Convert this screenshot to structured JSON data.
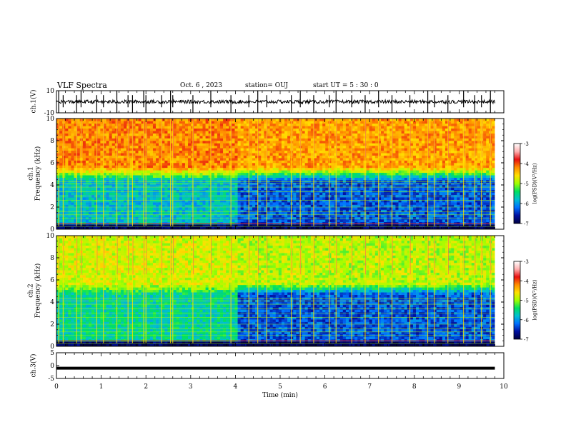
{
  "header": {
    "title": "VLF Spectra",
    "date": "Oct. 6 , 2023",
    "station": "station= OUJ",
    "start": "start UT = 5 : 30 : 0"
  },
  "colorbar": {
    "label": "log(PSD)(V²/Hz)",
    "ticks": [
      "-3",
      "-4",
      "-5",
      "-6",
      "-7"
    ],
    "stops": [
      "#ffffff",
      "#ffb0b0",
      "#e81010",
      "#ff8c00",
      "#ffe000",
      "#a0ff00",
      "#00e060",
      "#00c0d0",
      "#0070ff",
      "#0010a0",
      "#000040"
    ]
  },
  "panels": {
    "ch1_waveform": {
      "label": "ch.1(V)",
      "yticks": [
        "10",
        "-10"
      ]
    },
    "ch1_spec": {
      "label": "ch.1",
      "ylabel": "Frequency (kHz)",
      "yticks": [
        "10",
        "8",
        "6",
        "4",
        "2",
        "0"
      ]
    },
    "ch2_spec": {
      "label": "ch.2",
      "ylabel": "Frequency (kHz)",
      "yticks": [
        "10",
        "8",
        "6",
        "4",
        "2",
        "0"
      ]
    },
    "ch3_waveform": {
      "label": "ch.3(V)",
      "yticks": [
        "5",
        "0",
        "-5"
      ]
    }
  },
  "xaxis": {
    "label": "Time (min)",
    "ticks": [
      "0",
      "1",
      "2",
      "3",
      "4",
      "5",
      "6",
      "7",
      "8",
      "9",
      "10"
    ]
  },
  "chart_data": {
    "type": "heatmap",
    "title": "VLF Spectra",
    "xlabel": "Time (min)",
    "ylabel": "Frequency (kHz)",
    "xlim": [
      0,
      10
    ],
    "ylim": [
      0,
      10
    ],
    "clim": [
      -7,
      -3
    ],
    "colorbar_label": "log(PSD)(V²/Hz)",
    "ch1_waveform_ylim": [
      -10,
      10
    ],
    "ch3_waveform_ylim": [
      -5,
      5
    ],
    "ch3_level": -1,
    "data_end_min": 9.8,
    "segment_change_min": 4.0,
    "spectrogram_levels": {
      "ch1": {
        "band_low_kHz": [
          0,
          4.3
        ],
        "band_high_kHz": [
          5.5,
          10
        ],
        "before_4min": {
          "low": -5.8,
          "high": -4.2
        },
        "after_4min": {
          "low": -6.3,
          "high": -4.3
        }
      },
      "ch2": {
        "band_low_kHz": [
          0,
          4.6
        ],
        "band_high_kHz": [
          5.5,
          10
        ],
        "before_4min": {
          "low": -5.6,
          "high": -4.8
        },
        "after_4min": {
          "low": -6.3,
          "high": -4.9
        }
      }
    },
    "sferic_times_min": [
      0.05,
      0.15,
      0.45,
      0.55,
      0.9,
      1.05,
      1.35,
      1.6,
      1.7,
      1.95,
      2.0,
      2.35,
      2.55,
      2.6,
      3.05,
      3.45,
      3.9,
      4.3,
      4.5,
      4.7,
      5.25,
      5.45,
      5.75,
      6.1,
      6.25,
      6.6,
      6.9,
      7.2,
      7.5,
      7.9,
      8.3,
      8.45,
      8.75,
      9.1,
      9.35,
      9.5,
      9.7
    ],
    "tone_lines_kHz": [
      0.25,
      0.5,
      1.0,
      1.3,
      1.6,
      2.0,
      2.6,
      3.0,
      3.4,
      3.8,
      4.1,
      4.3
    ]
  }
}
